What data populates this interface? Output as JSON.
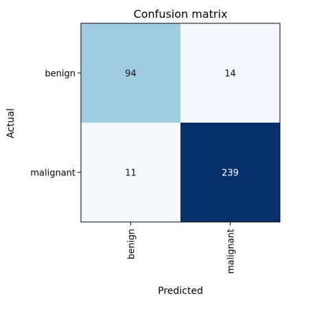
{
  "chart_data": {
    "type": "heatmap",
    "title": "Confusion matrix",
    "xlabel": "Predicted",
    "ylabel": "Actual",
    "x_categories": [
      "benign",
      "malignant"
    ],
    "y_categories": [
      "benign",
      "malignant"
    ],
    "values": [
      [
        94,
        14
      ],
      [
        11,
        239
      ]
    ],
    "colormap": "Blues",
    "grid": false,
    "legend": "none"
  },
  "colors": {
    "cell_00": "#a1cbe2",
    "cell_01": "#f3f8fe",
    "cell_10": "#f4f9fe",
    "cell_11": "#08306b",
    "text_dark": "#111111",
    "text_light": "#ffffff"
  }
}
